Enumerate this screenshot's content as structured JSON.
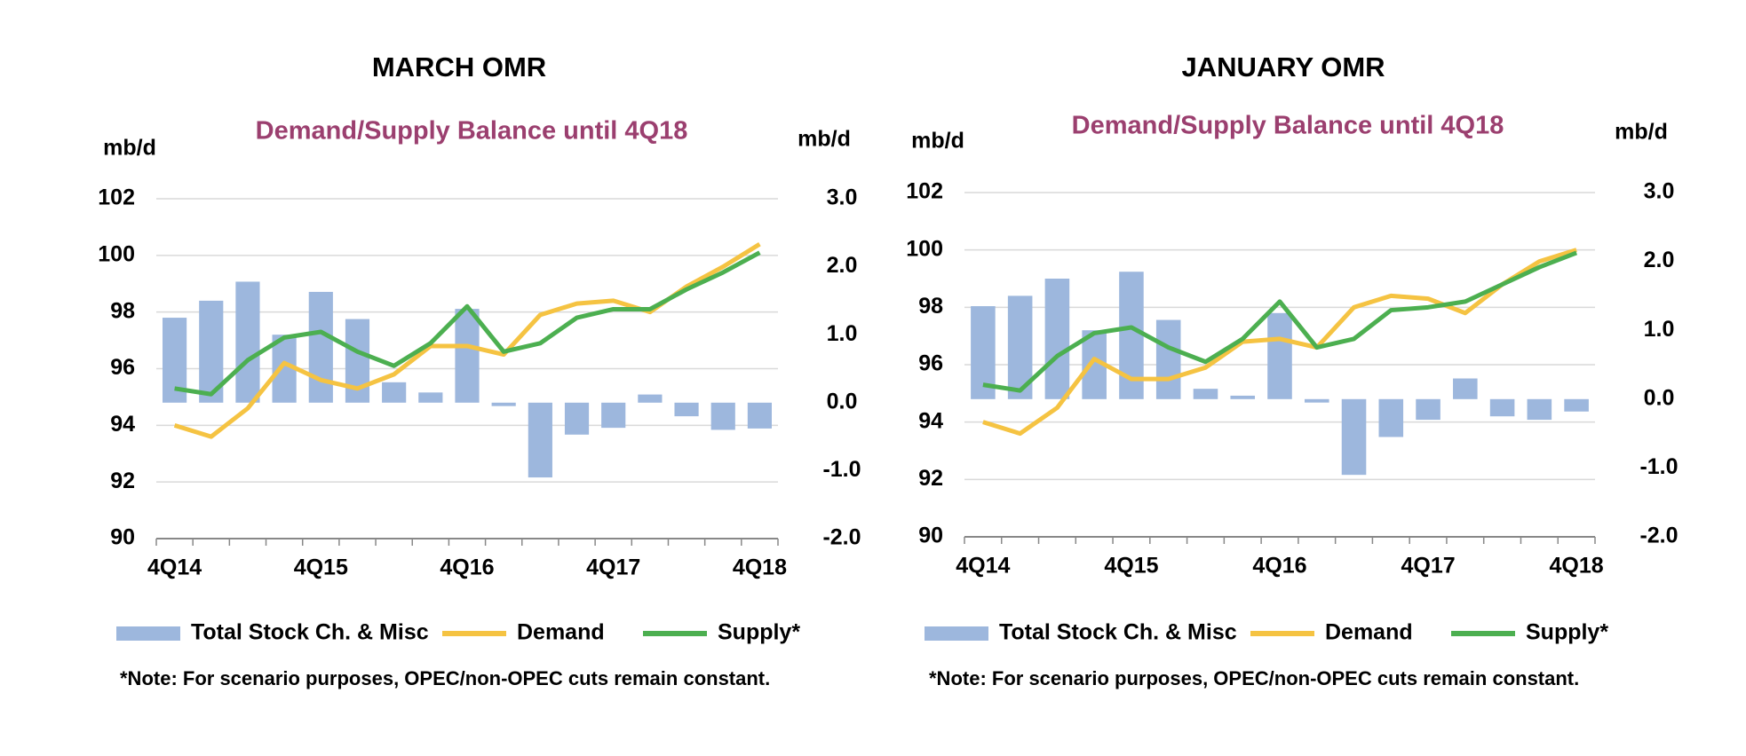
{
  "chart_data": [
    {
      "type": "combo",
      "title": "MARCH OMR",
      "subtitle": "Demand/Supply Balance until 4Q18",
      "y_label": "mb/d",
      "y2_label": "mb/d",
      "note": "*Note: For scenario purposes, OPEC/non-OPEC cuts remain constant.",
      "legend": "bottom",
      "categories": [
        "4Q14",
        null,
        null,
        null,
        "4Q15",
        null,
        null,
        null,
        "4Q16",
        null,
        null,
        null,
        "4Q17",
        null,
        null,
        null,
        "4Q18"
      ],
      "ylim": [
        90,
        102
      ],
      "yticks": [
        90,
        92,
        94,
        96,
        98,
        100,
        102
      ],
      "y2lim": [
        -2,
        3
      ],
      "y2ticks": [
        {
          "value": -2,
          "label": "-2.0"
        },
        {
          "value": -1,
          "label": "-1.0"
        },
        {
          "value": 0,
          "label": "0.0"
        },
        {
          "value": 1,
          "label": "1.0"
        },
        {
          "value": 2,
          "label": "2.0"
        },
        {
          "value": 3,
          "label": "3.0"
        }
      ],
      "series": [
        {
          "name": "Total Stock Ch. & Misc",
          "type": "bar",
          "axis": "y2",
          "color": "#9db7dd",
          "values": [
            1.25,
            1.5,
            1.78,
            1.0,
            1.63,
            1.23,
            0.3,
            0.15,
            1.38,
            -0.05,
            -1.1,
            -0.47,
            -0.37,
            0.12,
            -0.2,
            -0.4,
            -0.38
          ]
        },
        {
          "name": "Demand",
          "type": "line",
          "color": "#f5c342",
          "values": [
            94.0,
            93.6,
            94.6,
            96.2,
            95.6,
            95.3,
            95.8,
            96.8,
            96.8,
            96.5,
            97.9,
            98.3,
            98.4,
            98.0,
            98.9,
            99.6,
            100.4
          ]
        },
        {
          "name": "Supply*",
          "type": "line",
          "color": "#4caf50",
          "values": [
            95.3,
            95.1,
            96.3,
            97.1,
            97.3,
            96.6,
            96.1,
            96.9,
            98.2,
            96.6,
            96.9,
            97.8,
            98.1,
            98.1,
            98.8,
            99.4,
            100.1
          ]
        }
      ]
    },
    {
      "type": "combo",
      "title": "JANUARY OMR",
      "subtitle": "Demand/Supply Balance until 4Q18",
      "y_label": "mb/d",
      "y2_label": "mb/d",
      "note": "*Note: For scenario purposes, OPEC/non-OPEC cuts remain constant.",
      "legend": "bottom",
      "categories": [
        "4Q14",
        null,
        null,
        null,
        "4Q15",
        null,
        null,
        null,
        "4Q16",
        null,
        null,
        null,
        "4Q17",
        null,
        null,
        null,
        "4Q18"
      ],
      "ylim": [
        90,
        102
      ],
      "yticks": [
        90,
        92,
        94,
        96,
        98,
        100,
        102
      ],
      "y2lim": [
        -2,
        3
      ],
      "y2ticks": [
        {
          "value": -2,
          "label": "-2.0"
        },
        {
          "value": -1,
          "label": "-1.0"
        },
        {
          "value": 0,
          "label": "0.0"
        },
        {
          "value": 1,
          "label": "1.0"
        },
        {
          "value": 2,
          "label": "2.0"
        },
        {
          "value": 3,
          "label": "3.0"
        }
      ],
      "series": [
        {
          "name": "Total Stock Ch. & Misc",
          "type": "bar",
          "axis": "y2",
          "color": "#9db7dd",
          "values": [
            1.35,
            1.5,
            1.75,
            1.0,
            1.85,
            1.15,
            0.15,
            0.05,
            1.25,
            -0.05,
            -1.1,
            -0.55,
            -0.3,
            0.3,
            -0.25,
            -0.3,
            -0.18
          ]
        },
        {
          "name": "Demand",
          "type": "line",
          "color": "#f5c342",
          "values": [
            94.0,
            93.6,
            94.5,
            96.2,
            95.5,
            95.5,
            95.9,
            96.8,
            96.9,
            96.6,
            98.0,
            98.4,
            98.3,
            97.8,
            98.8,
            99.6,
            100.0
          ]
        },
        {
          "name": "Supply*",
          "type": "line",
          "color": "#4caf50",
          "values": [
            95.3,
            95.1,
            96.3,
            97.1,
            97.3,
            96.6,
            96.1,
            96.9,
            98.2,
            96.6,
            96.9,
            97.9,
            98.0,
            98.2,
            98.8,
            99.4,
            99.9
          ]
        }
      ]
    }
  ]
}
